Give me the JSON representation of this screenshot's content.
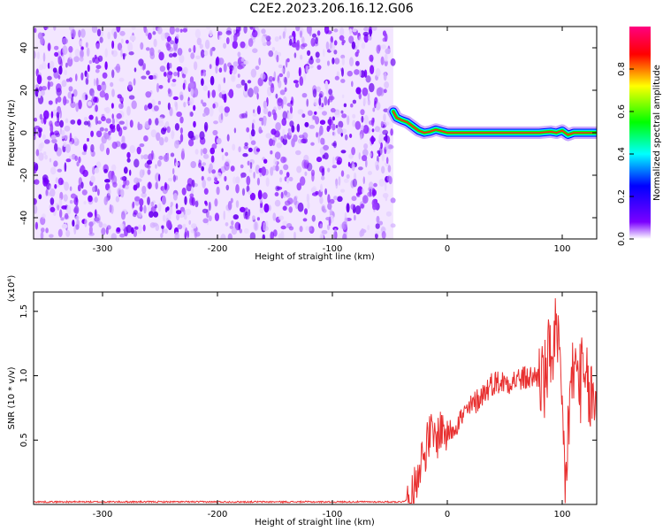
{
  "title": "C2E2.2023.206.16.12.G06",
  "chart_data": [
    {
      "type": "heatmap",
      "xlabel": "Height of straight line (km)",
      "ylabel": "Frequency (Hz)",
      "xlim": [
        -360,
        130
      ],
      "ylim": [
        -50,
        50
      ],
      "x_ticks": [
        -300,
        -200,
        -100,
        0,
        100
      ],
      "y_ticks": [
        -40,
        -20,
        0,
        20,
        40
      ],
      "noise_region_x": [
        -360,
        -47
      ],
      "signal_trace": {
        "x": [
          -47,
          -44,
          -40,
          -35,
          -30,
          -25,
          -20,
          -15,
          -10,
          0,
          10,
          20,
          40,
          60,
          80,
          90,
          95,
          100,
          105,
          110,
          130
        ],
        "y": [
          10,
          7,
          6,
          5,
          3,
          1,
          0,
          0.5,
          1.5,
          0,
          0,
          0,
          0,
          0,
          0,
          0.5,
          0,
          1,
          -1,
          0,
          0
        ]
      },
      "colorbar": {
        "label": "Normalized spectral amplitude",
        "range": [
          0,
          1
        ],
        "ticks": [
          "0.0",
          "0.2",
          "0.4",
          "0.6",
          "0.8"
        ],
        "colors": [
          "#ffffff",
          "#7b00ff",
          "#0000ff",
          "#00ffff",
          "#00ff00",
          "#ffff00",
          "#ff0000",
          "#ff0080"
        ]
      }
    },
    {
      "type": "line",
      "xlabel": "Height of straight line (km)",
      "ylabel": "SNR (10 * v/v)",
      "y_multiplier": "(x10⁴)",
      "xlim": [
        -360,
        130
      ],
      "ylim": [
        0,
        1.65
      ],
      "x_ticks": [
        -300,
        -200,
        -100,
        0,
        100
      ],
      "y_ticks": [
        "0.5",
        "1.0",
        "1.5"
      ],
      "line_color": "#e83030",
      "x": [
        -360,
        -40,
        -30,
        -25,
        -20,
        -15,
        -10,
        -5,
        0,
        10,
        20,
        30,
        40,
        50,
        60,
        70,
        80,
        85,
        90,
        95,
        100,
        103,
        105,
        108,
        110,
        115,
        120,
        130
      ],
      "y": [
        0.02,
        0.02,
        0.05,
        0.3,
        0.4,
        0.55,
        0.5,
        0.6,
        0.55,
        0.65,
        0.75,
        0.85,
        0.95,
        0.95,
        0.97,
        0.98,
        1.0,
        0.95,
        1.2,
        1.3,
        0.7,
        0.1,
        0.6,
        0.9,
        1.05,
        1.0,
        0.9,
        0.75
      ]
    }
  ]
}
